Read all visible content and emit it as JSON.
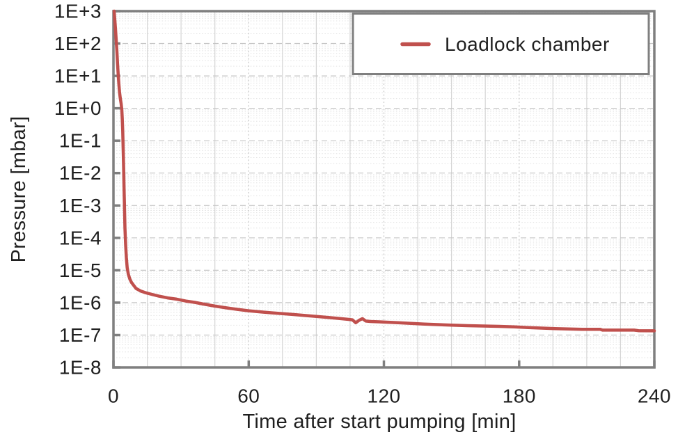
{
  "figure": {
    "background": "#ffffff"
  },
  "chart_data": {
    "type": "line",
    "title": "",
    "xlabel": "Time after start pumping [min]",
    "ylabel": "Pressure [mbar]",
    "x_axis": {
      "min": 0,
      "max": 240,
      "major_tick_interval": 60,
      "minor_tick_interval": 15,
      "tick_labels": [
        "0",
        "60",
        "120",
        "180",
        "240"
      ]
    },
    "y_axis": {
      "scale": "log",
      "min": 1e-08,
      "max": 1000.0,
      "tick_labels": [
        "1E+3",
        "1E+2",
        "1E+1",
        "1E+0",
        "1E-1",
        "1E-2",
        "1E-3",
        "1E-4",
        "1E-5",
        "1E-6",
        "1E-7",
        "1E-8"
      ]
    },
    "grid": {
      "major": true,
      "minor": true,
      "major_color": "#c6c6c6",
      "minor_color": "#e2e2e2"
    },
    "legend": {
      "position": "top-right",
      "entries": [
        {
          "label": "Loadlock chamber",
          "color": "#c0504d"
        }
      ]
    },
    "series": [
      {
        "name": "Loadlock chamber",
        "color": "#c0504d",
        "points": [
          [
            0.3,
            1000
          ],
          [
            0.6,
            550
          ],
          [
            0.9,
            280
          ],
          [
            1.2,
            130
          ],
          [
            1.5,
            60
          ],
          [
            1.8,
            25
          ],
          [
            2.1,
            11
          ],
          [
            2.4,
            5.5
          ],
          [
            2.7,
            3.2
          ],
          [
            3,
            2.1
          ],
          [
            3.4,
            1.4
          ],
          [
            3.7,
            0.9
          ],
          [
            3.9,
            0.5
          ],
          [
            4.1,
            0.2
          ],
          [
            4.3,
            0.06
          ],
          [
            4.5,
            0.015
          ],
          [
            4.7,
            0.0035
          ],
          [
            4.9,
            0.0008
          ],
          [
            5.1,
            0.0002
          ],
          [
            5.4,
            6e-05
          ],
          [
            5.7,
            2.5e-05
          ],
          [
            6.1,
            1.2e-05
          ],
          [
            6.6,
            7.5e-06
          ],
          [
            7.2,
            5.5e-06
          ],
          [
            8,
            4.2e-06
          ],
          [
            9,
            3.4e-06
          ],
          [
            10,
            2.75e-06
          ],
          [
            12,
            2.3e-06
          ],
          [
            14,
            2.05e-06
          ],
          [
            17,
            1.8e-06
          ],
          [
            20,
            1.6e-06
          ],
          [
            24,
            1.4e-06
          ],
          [
            28,
            1.28e-06
          ],
          [
            32,
            1.12e-06
          ],
          [
            36,
            1.02e-06
          ],
          [
            40,
            9e-07
          ],
          [
            45,
            7.8e-07
          ],
          [
            50,
            6.9e-07
          ],
          [
            55,
            6.2e-07
          ],
          [
            60,
            5.6e-07
          ],
          [
            65,
            5.2e-07
          ],
          [
            70,
            4.85e-07
          ],
          [
            75,
            4.55e-07
          ],
          [
            80,
            4.3e-07
          ],
          [
            85,
            4e-07
          ],
          [
            90,
            3.75e-07
          ],
          [
            95,
            3.5e-07
          ],
          [
            100,
            3.25e-07
          ],
          [
            104,
            3.05e-07
          ],
          [
            106,
            2.95e-07
          ],
          [
            107.5,
            2.4e-07
          ],
          [
            109,
            2.85e-07
          ],
          [
            110.5,
            3.2e-07
          ],
          [
            112,
            2.7e-07
          ],
          [
            114,
            2.62e-07
          ],
          [
            118,
            2.55e-07
          ],
          [
            122,
            2.48e-07
          ],
          [
            127,
            2.38e-07
          ],
          [
            132,
            2.28e-07
          ],
          [
            138,
            2.18e-07
          ],
          [
            144,
            2.1e-07
          ],
          [
            150,
            2.02e-07
          ],
          [
            157,
            1.95e-07
          ],
          [
            164,
            1.9e-07
          ],
          [
            171,
            1.85e-07
          ],
          [
            178,
            1.78e-07
          ],
          [
            184,
            1.7e-07
          ],
          [
            190,
            1.64e-07
          ],
          [
            196,
            1.58e-07
          ],
          [
            202,
            1.54e-07
          ],
          [
            208,
            1.5e-07
          ],
          [
            216,
            1.5e-07
          ],
          [
            217,
            1.42e-07
          ],
          [
            231,
            1.42e-07
          ],
          [
            233,
            1.36e-07
          ],
          [
            240,
            1.35e-07
          ]
        ]
      }
    ],
    "style_colors": {
      "axis": "#7f7f7f",
      "text": "#1f1f1f",
      "plot_background": "#ffffff",
      "legend_border": "#7f7f7f"
    }
  }
}
